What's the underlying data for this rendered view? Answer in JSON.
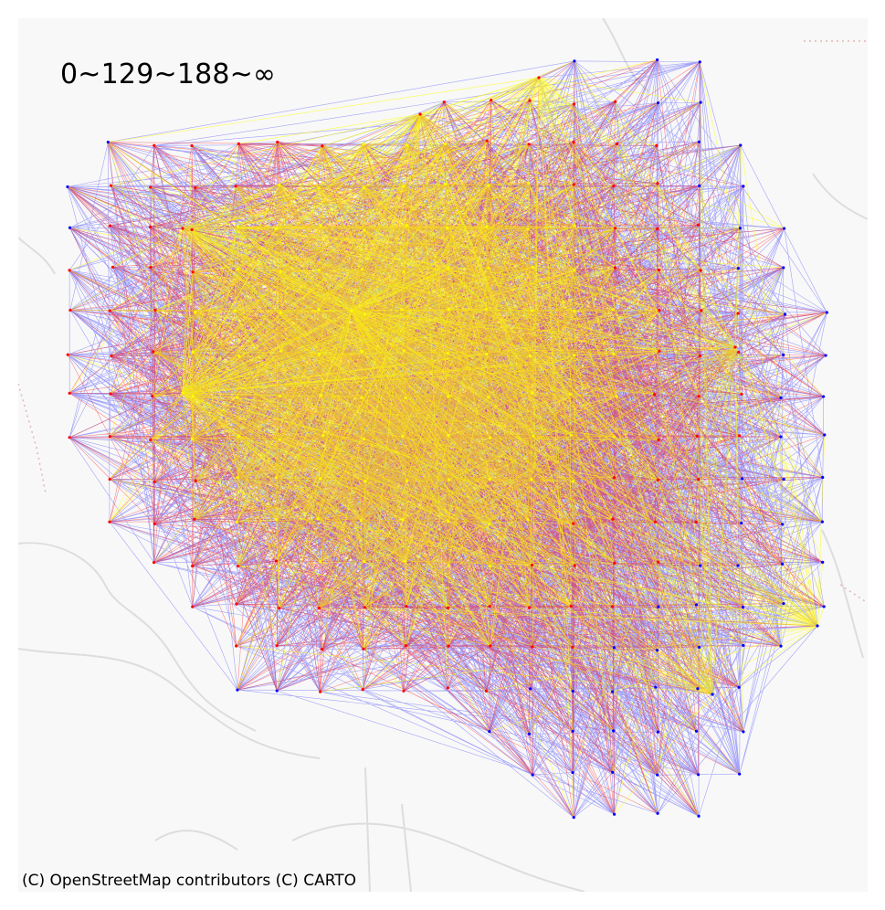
{
  "map": {
    "legend_text": "0~129~188~∞",
    "attribution": "(C) OpenStreetMap contributors (C) CARTO",
    "class_colors": [
      "#0000ff",
      "#ff0000",
      "#ffff00"
    ],
    "basemap_colors": {
      "land": "#f8f8f8",
      "road": "#dcdcdc",
      "boundary": "#e3b5b5"
    }
  }
}
